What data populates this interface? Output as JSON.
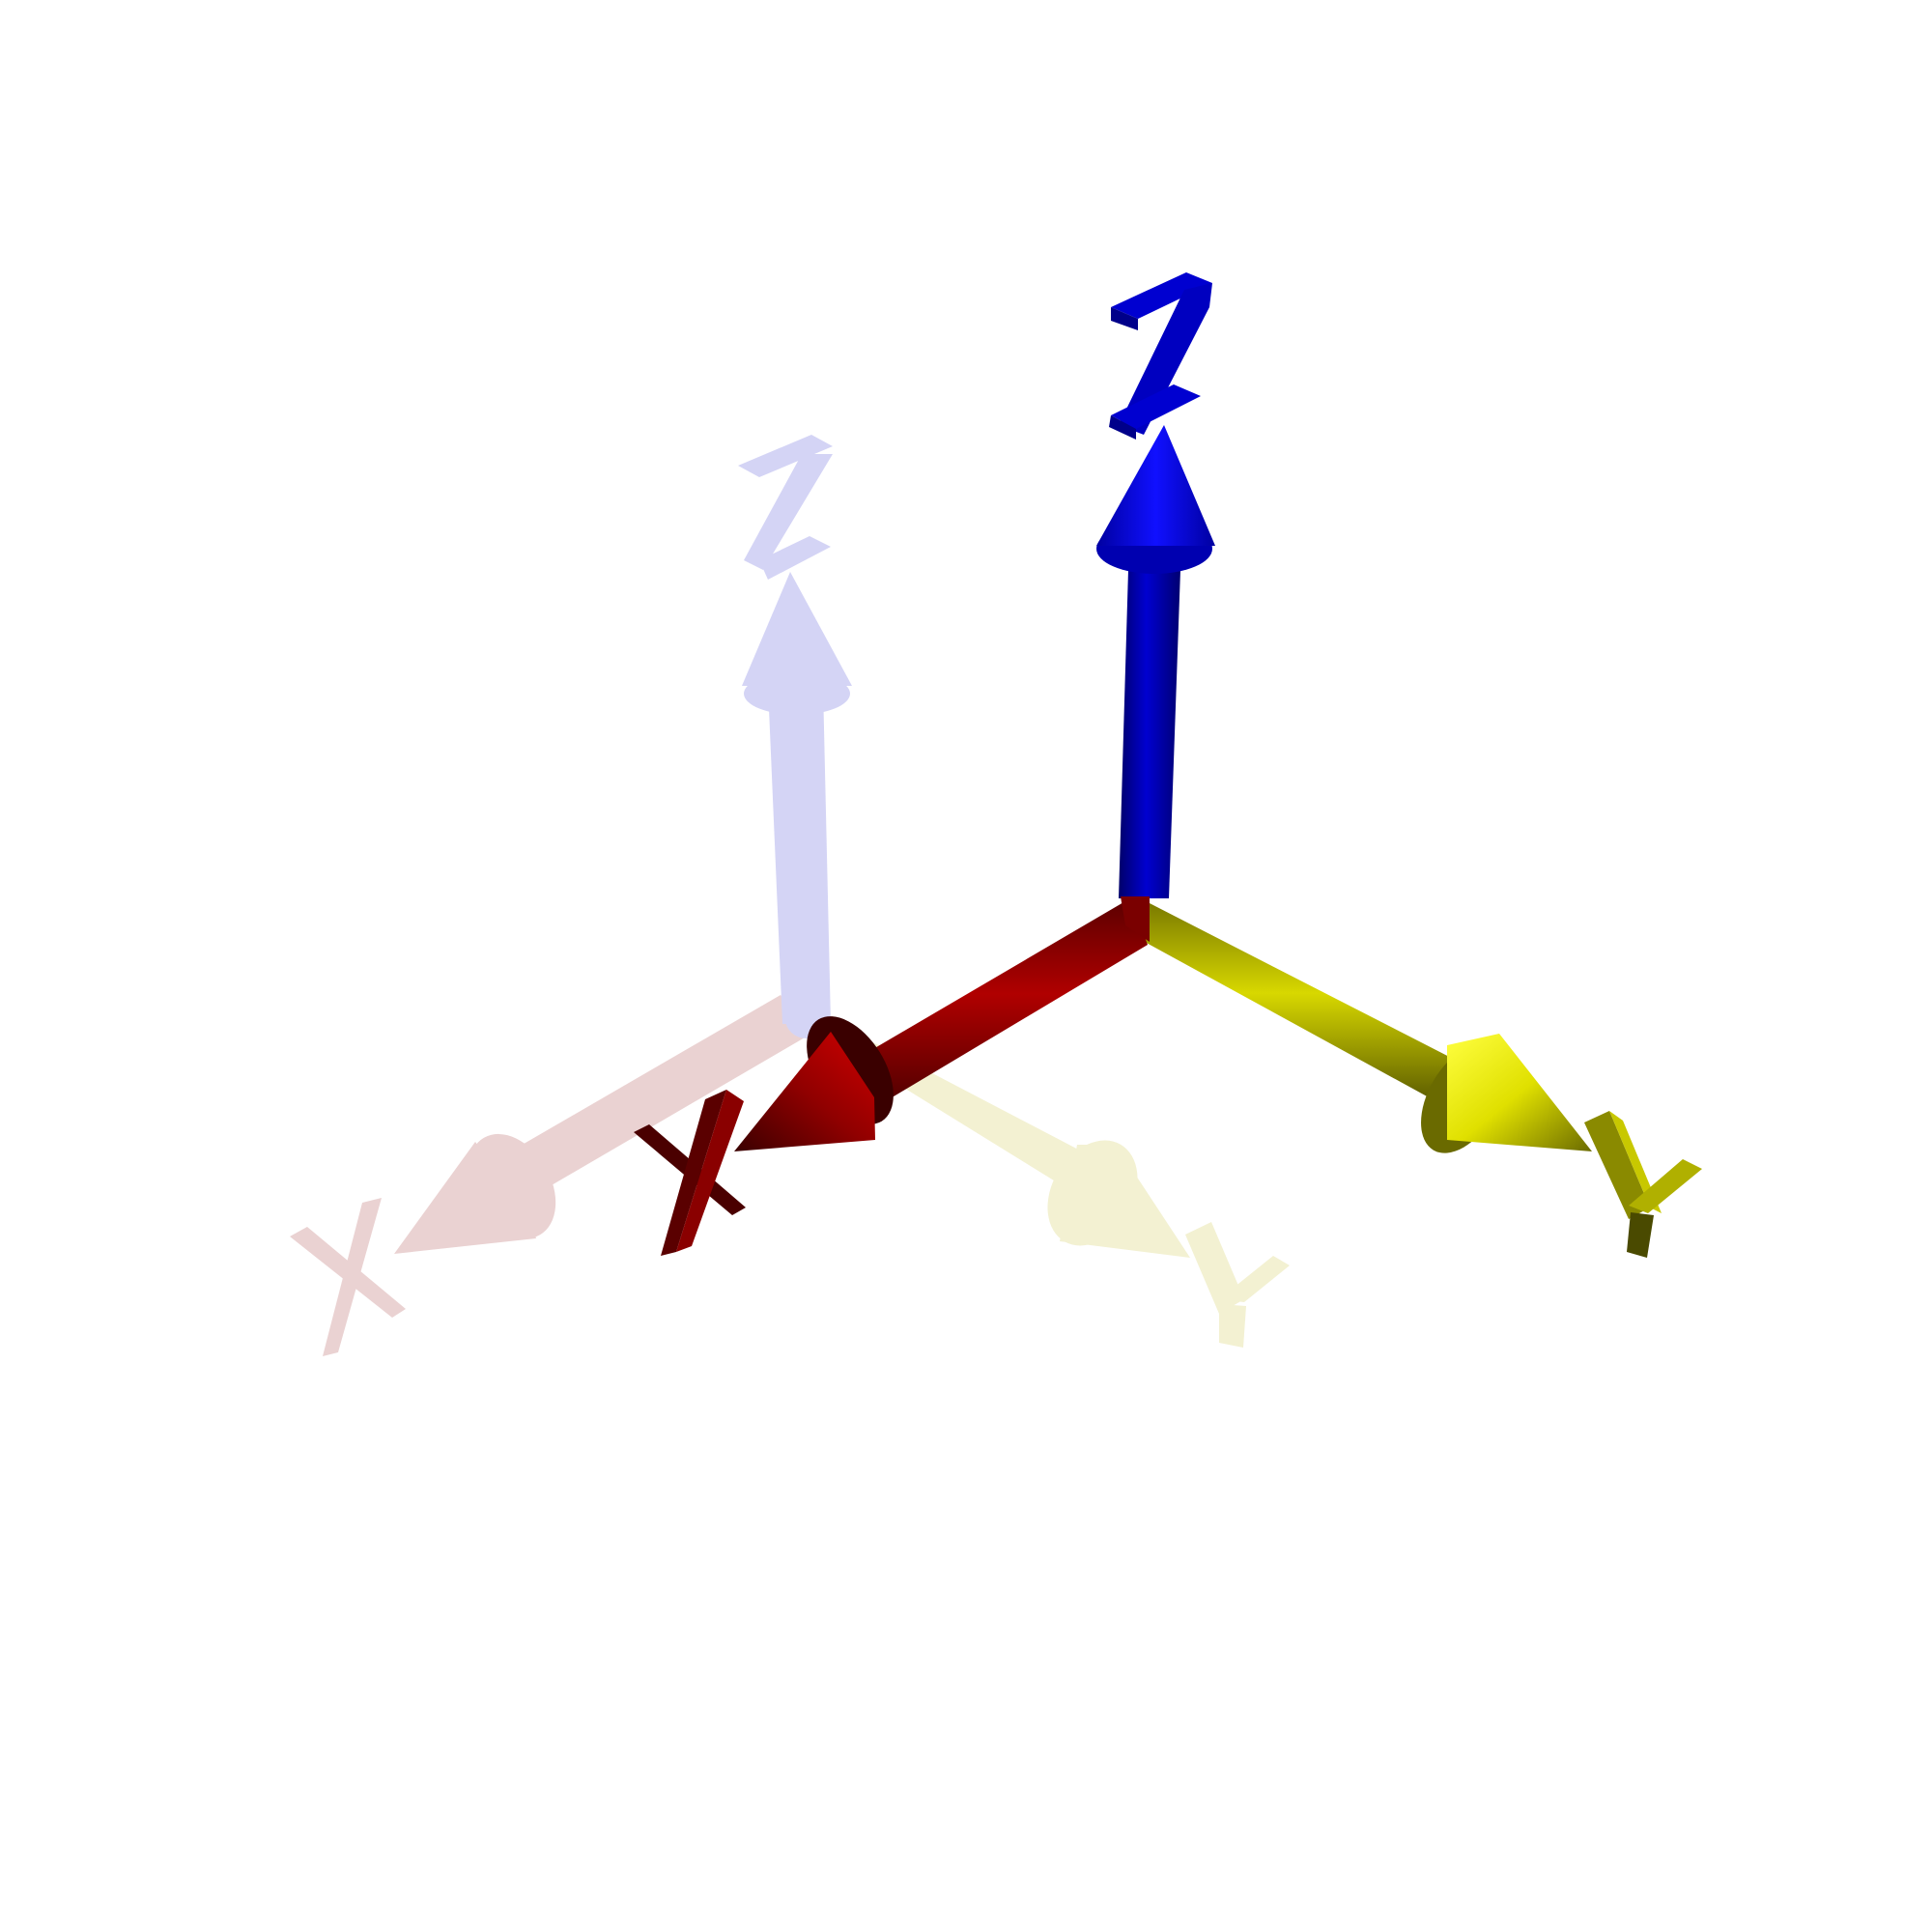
{
  "frames": {
    "faded": {
      "opacity": 0.18,
      "axes": {
        "x": {
          "label": "X",
          "color": "#8b0000"
        },
        "y": {
          "label": "Y",
          "color": "#b8b000"
        },
        "z": {
          "label": "Z",
          "color": "#1010c8"
        }
      }
    },
    "main": {
      "opacity": 1,
      "axes": {
        "x": {
          "label": "X",
          "color": "#8b0000"
        },
        "y": {
          "label": "Y",
          "color": "#b8b000"
        },
        "z": {
          "label": "Z",
          "color": "#0000c0"
        }
      }
    }
  }
}
